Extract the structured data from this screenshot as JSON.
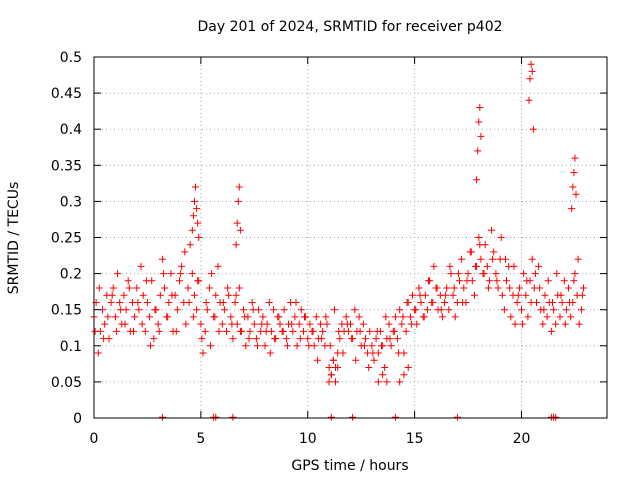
{
  "chart_data": {
    "type": "scatter",
    "title": "Day 201 of 2024, SRMTID for receiver p402",
    "xlabel": "GPS time / hours",
    "ylabel": "SRMTID / TECUs",
    "xlim": [
      0,
      24
    ],
    "ylim": [
      0,
      0.5
    ],
    "xticks": [
      0,
      5,
      10,
      15,
      20
    ],
    "xtick_labels": [
      "0",
      "5",
      "10",
      "15",
      "20"
    ],
    "yticks": [
      0,
      0.05,
      0.1,
      0.15,
      0.2,
      0.25,
      0.3,
      0.35,
      0.4,
      0.45,
      0.5
    ],
    "ytick_labels": [
      "0",
      "0.05",
      "0.1",
      "0.15",
      "0.2",
      "0.25",
      "0.3",
      "0.35",
      "0.4",
      "0.45",
      "0.5"
    ],
    "grid": true,
    "marker": "plus",
    "color": "#ff0000",
    "series": [
      {
        "name": "SRMTID",
        "x": [
          0.0,
          0.1,
          0.2,
          0.3,
          0.4,
          0.5,
          0.6,
          0.7,
          0.8,
          0.9,
          1.0,
          1.1,
          1.2,
          1.3,
          1.4,
          1.5,
          1.6,
          1.7,
          1.8,
          1.9,
          2.0,
          2.1,
          2.2,
          2.3,
          2.4,
          2.5,
          2.6,
          2.7,
          2.8,
          2.9,
          3.0,
          3.1,
          3.2,
          3.3,
          3.4,
          3.5,
          3.6,
          3.7,
          3.8,
          3.9,
          4.0,
          4.1,
          4.2,
          4.3,
          4.4,
          4.5,
          4.6,
          4.7,
          4.8,
          4.9,
          5.0,
          5.1,
          5.2,
          5.3,
          5.4,
          5.5,
          5.6,
          5.7,
          5.8,
          5.9,
          6.0,
          6.1,
          6.2,
          6.3,
          6.4,
          6.5,
          6.6,
          6.7,
          6.8,
          6.9,
          7.0,
          7.1,
          7.2,
          7.3,
          7.4,
          7.5,
          7.6,
          7.7,
          7.8,
          7.9,
          8.0,
          8.1,
          8.2,
          8.3,
          8.4,
          8.5,
          8.6,
          8.7,
          8.8,
          8.9,
          9.0,
          9.1,
          9.2,
          9.3,
          9.4,
          9.5,
          9.6,
          9.7,
          9.8,
          9.9,
          10.0,
          10.1,
          10.2,
          10.3,
          10.4,
          10.5,
          10.6,
          10.7,
          10.8,
          10.9,
          11.0,
          11.1,
          11.2,
          11.3,
          11.4,
          11.5,
          11.6,
          11.7,
          11.8,
          11.9,
          12.0,
          12.1,
          12.2,
          12.3,
          12.4,
          12.5,
          12.6,
          12.7,
          12.8,
          12.9,
          13.0,
          13.1,
          13.2,
          13.3,
          13.4,
          13.5,
          13.6,
          13.7,
          13.8,
          13.9,
          14.0,
          14.1,
          14.2,
          14.3,
          14.4,
          14.5,
          14.6,
          14.7,
          14.8,
          14.9,
          15.0,
          15.1,
          15.2,
          15.3,
          15.4,
          15.5,
          15.6,
          15.7,
          15.8,
          15.9,
          16.0,
          16.1,
          16.2,
          16.3,
          16.4,
          16.5,
          16.6,
          16.7,
          16.8,
          16.9,
          17.0,
          17.1,
          17.2,
          17.3,
          17.4,
          17.5,
          17.6,
          17.7,
          17.8,
          17.9,
          18.0,
          18.1,
          18.2,
          18.3,
          18.4,
          18.5,
          18.6,
          18.7,
          18.8,
          18.9,
          19.0,
          19.1,
          19.2,
          19.3,
          19.4,
          19.5,
          19.6,
          19.7,
          19.8,
          19.9,
          20.0,
          20.1,
          20.2,
          20.3,
          20.4,
          20.5,
          20.6,
          20.7,
          20.8,
          20.9,
          21.0,
          21.1,
          21.2,
          21.3,
          21.4,
          21.5,
          21.6,
          21.7,
          21.8,
          21.9,
          22.0,
          22.1,
          22.2,
          22.3,
          22.4,
          22.5,
          22.6,
          22.7,
          22.8,
          22.9,
          0.05,
          0.25,
          0.45,
          0.65,
          0.85,
          1.05,
          1.25,
          1.45,
          1.65,
          1.85,
          2.05,
          2.25,
          2.45,
          2.65,
          2.85,
          3.05,
          3.25,
          3.45,
          3.65,
          3.85,
          4.05,
          4.25,
          4.45,
          4.65,
          4.85,
          5.05,
          5.25,
          5.45,
          5.65,
          5.85,
          6.05,
          6.25,
          6.45,
          6.65,
          6.85,
          7.05,
          7.25,
          7.45,
          7.65,
          7.85,
          8.05,
          8.25,
          8.45,
          8.65,
          8.85,
          9.05,
          9.25,
          9.45,
          9.65,
          9.85,
          10.05,
          10.25,
          10.45,
          10.65,
          10.85,
          11.05,
          11.25,
          11.45,
          11.65,
          11.85,
          12.05,
          12.25,
          12.45,
          12.65,
          12.85,
          13.05,
          13.25,
          13.45,
          13.65,
          13.85,
          14.05,
          14.25,
          14.45,
          14.65,
          14.85,
          15.05,
          15.25,
          15.45,
          15.65,
          15.85,
          16.05,
          16.25,
          16.45,
          16.65,
          16.85,
          17.05,
          17.25,
          17.45,
          17.65,
          17.85,
          18.05,
          18.25,
          18.45,
          18.65,
          18.85,
          19.05,
          19.25,
          19.45,
          19.65,
          19.85,
          20.05,
          20.25,
          20.45,
          20.65,
          20.85,
          21.05,
          21.25,
          21.45,
          21.65,
          21.85,
          22.05,
          22.25,
          22.45,
          22.65,
          22.85,
          4.6,
          4.65,
          4.7,
          4.75,
          4.8,
          4.85,
          4.9,
          6.65,
          6.7,
          6.75,
          6.8,
          6.85,
          17.9,
          17.95,
          18.0,
          18.05,
          18.1,
          20.35,
          20.4,
          20.45,
          20.5,
          20.55,
          22.35,
          22.4,
          22.45,
          22.5,
          22.55,
          11.0,
          11.1,
          11.2,
          11.3,
          11.4,
          13.3,
          13.5,
          13.7,
          14.3,
          14.5,
          14.7,
          3.2,
          5.6,
          5.7,
          6.5,
          11.1,
          12.1,
          14.1,
          17.0,
          21.4,
          21.5,
          21.6
        ],
        "y": [
          0.14,
          0.16,
          0.09,
          0.12,
          0.15,
          0.13,
          0.17,
          0.11,
          0.16,
          0.18,
          0.14,
          0.2,
          0.16,
          0.13,
          0.17,
          0.15,
          0.19,
          0.12,
          0.16,
          0.14,
          0.18,
          0.15,
          0.21,
          0.17,
          0.12,
          0.16,
          0.14,
          0.19,
          0.11,
          0.15,
          0.13,
          0.17,
          0.22,
          0.18,
          0.14,
          0.16,
          0.2,
          0.12,
          0.17,
          0.15,
          0.19,
          0.21,
          0.16,
          0.13,
          0.18,
          0.24,
          0.2,
          0.17,
          0.15,
          0.19,
          0.13,
          0.09,
          0.12,
          0.15,
          0.18,
          0.2,
          0.14,
          0.17,
          0.21,
          0.16,
          0.13,
          0.15,
          0.12,
          0.17,
          0.14,
          0.11,
          0.16,
          0.13,
          0.18,
          0.12,
          0.15,
          0.1,
          0.14,
          0.12,
          0.16,
          0.13,
          0.11,
          0.15,
          0.12,
          0.14,
          0.1,
          0.13,
          0.16,
          0.12,
          0.15,
          0.11,
          0.14,
          0.13,
          0.12,
          0.15,
          0.11,
          0.13,
          0.16,
          0.12,
          0.14,
          0.1,
          0.13,
          0.15,
          0.12,
          0.14,
          0.11,
          0.13,
          0.12,
          0.1,
          0.14,
          0.11,
          0.13,
          0.12,
          0.1,
          0.13,
          0.07,
          0.06,
          0.08,
          0.07,
          0.09,
          0.11,
          0.13,
          0.12,
          0.14,
          0.12,
          0.13,
          0.11,
          0.15,
          0.12,
          0.14,
          0.1,
          0.13,
          0.11,
          0.09,
          0.12,
          0.1,
          0.08,
          0.11,
          0.09,
          0.12,
          0.1,
          0.07,
          0.11,
          0.13,
          0.1,
          0.12,
          0.14,
          0.11,
          0.15,
          0.13,
          0.09,
          0.12,
          0.16,
          0.14,
          0.17,
          0.15,
          0.13,
          0.18,
          0.16,
          0.14,
          0.17,
          0.15,
          0.19,
          0.16,
          0.21,
          0.18,
          0.15,
          0.17,
          0.14,
          0.16,
          0.18,
          0.15,
          0.2,
          0.17,
          0.14,
          0.16,
          0.19,
          0.22,
          0.18,
          0.16,
          0.2,
          0.23,
          0.19,
          0.17,
          0.21,
          0.25,
          0.22,
          0.2,
          0.24,
          0.21,
          0.19,
          0.26,
          0.23,
          0.2,
          0.18,
          0.22,
          0.17,
          0.15,
          0.19,
          0.21,
          0.14,
          0.17,
          0.13,
          0.16,
          0.18,
          0.15,
          0.2,
          0.17,
          0.14,
          0.19,
          0.22,
          0.18,
          0.16,
          0.21,
          0.15,
          0.13,
          0.17,
          0.14,
          0.16,
          0.12,
          0.15,
          0.13,
          0.17,
          0.14,
          0.16,
          0.19,
          0.15,
          0.18,
          0.14,
          0.16,
          0.2,
          0.17,
          0.13,
          0.15,
          0.18,
          0.12,
          0.18,
          0.11,
          0.14,
          0.17,
          0.12,
          0.15,
          0.13,
          0.18,
          0.12,
          0.16,
          0.13,
          0.19,
          0.1,
          0.15,
          0.12,
          0.2,
          0.14,
          0.17,
          0.12,
          0.2,
          0.23,
          0.16,
          0.14,
          0.19,
          0.11,
          0.16,
          0.1,
          0.14,
          0.12,
          0.16,
          0.18,
          0.13,
          0.17,
          0.12,
          0.14,
          0.11,
          0.15,
          0.1,
          0.13,
          0.12,
          0.09,
          0.11,
          0.14,
          0.12,
          0.1,
          0.13,
          0.16,
          0.11,
          0.14,
          0.1,
          0.12,
          0.08,
          0.11,
          0.14,
          0.1,
          0.15,
          0.12,
          0.09,
          0.13,
          0.11,
          0.08,
          0.12,
          0.1,
          0.07,
          0.09,
          0.12,
          0.1,
          0.14,
          0.11,
          0.12,
          0.09,
          0.14,
          0.16,
          0.13,
          0.15,
          0.17,
          0.14,
          0.19,
          0.16,
          0.18,
          0.15,
          0.17,
          0.21,
          0.18,
          0.2,
          0.16,
          0.19,
          0.23,
          0.21,
          0.24,
          0.2,
          0.18,
          0.22,
          0.19,
          0.25,
          0.22,
          0.18,
          0.21,
          0.17,
          0.13,
          0.19,
          0.16,
          0.2,
          0.18,
          0.15,
          0.19,
          0.16,
          0.2,
          0.17,
          0.13,
          0.16,
          0.19,
          0.22,
          0.17,
          0.26,
          0.28,
          0.3,
          0.32,
          0.29,
          0.27,
          0.25,
          0.24,
          0.27,
          0.3,
          0.32,
          0.26,
          0.33,
          0.37,
          0.41,
          0.43,
          0.39,
          0.44,
          0.47,
          0.49,
          0.48,
          0.4,
          0.29,
          0.32,
          0.34,
          0.36,
          0.31,
          0.05,
          0.06,
          0.08,
          0.05,
          0.07,
          0.05,
          0.06,
          0.05,
          0.05,
          0.06,
          0.07,
          0.001,
          0.001,
          0.001,
          0.001,
          0.001,
          0.001,
          0.001,
          0.001,
          0.001,
          0.001,
          0.001
        ]
      }
    ]
  }
}
